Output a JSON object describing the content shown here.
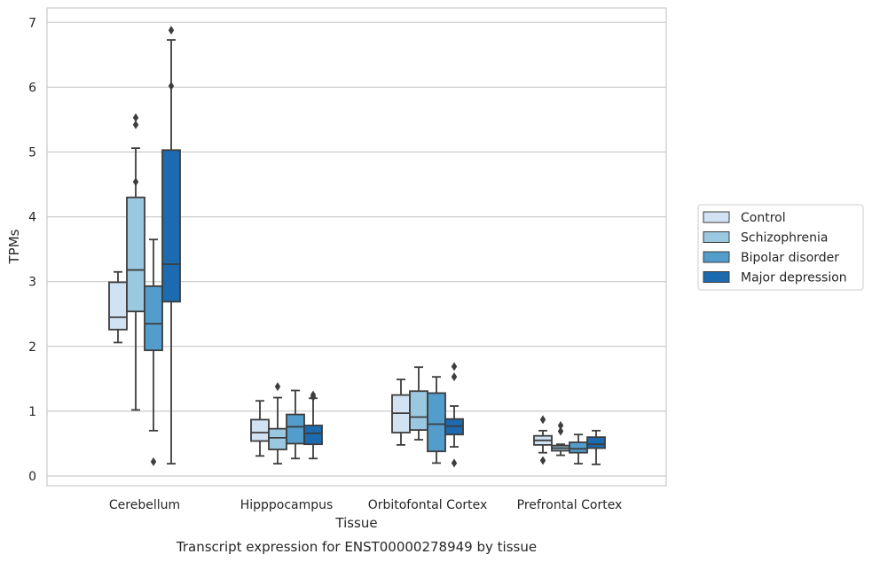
{
  "chart_data": {
    "type": "box",
    "title": "",
    "caption": "Transcript expression for ENST00000278949 by tissue",
    "xlabel": "Tissue",
    "ylabel": "TPMs",
    "ylim": [
      -0.15,
      7.25
    ],
    "yticks": [
      0,
      1,
      2,
      3,
      4,
      5,
      6,
      7
    ],
    "grid": "horizontal",
    "legend_position": "right",
    "categories": [
      "Cerebellum",
      "Hipppocampus",
      "Orbitofontal Cortex",
      "Prefrontal Cortex"
    ],
    "series": [
      {
        "name": "Control",
        "color": "#d1e2f2",
        "boxes": [
          {
            "whislo": 2.06,
            "q1": 2.26,
            "med": 2.45,
            "q3": 2.99,
            "whishi": 3.15,
            "fliers": []
          },
          {
            "whislo": 0.31,
            "q1": 0.54,
            "med": 0.67,
            "q3": 0.87,
            "whishi": 1.16,
            "fliers": []
          },
          {
            "whislo": 0.48,
            "q1": 0.67,
            "med": 0.97,
            "q3": 1.25,
            "whishi": 1.49,
            "fliers": []
          },
          {
            "whislo": 0.36,
            "q1": 0.48,
            "med": 0.55,
            "q3": 0.62,
            "whishi": 0.7,
            "fliers": [
              0.87,
              0.24
            ]
          }
        ]
      },
      {
        "name": "Schizophrenia",
        "color": "#9ac8e0",
        "boxes": [
          {
            "whislo": 1.02,
            "q1": 2.54,
            "med": 3.18,
            "q3": 4.3,
            "whishi": 5.06,
            "fliers": [
              5.53,
              5.42,
              4.54
            ]
          },
          {
            "whislo": 0.19,
            "q1": 0.41,
            "med": 0.59,
            "q3": 0.73,
            "whishi": 1.21,
            "fliers": [
              1.38
            ]
          },
          {
            "whislo": 0.56,
            "q1": 0.71,
            "med": 0.91,
            "q3": 1.31,
            "whishi": 1.68,
            "fliers": []
          },
          {
            "whislo": 0.32,
            "q1": 0.39,
            "med": 0.43,
            "q3": 0.47,
            "whishi": 0.49,
            "fliers": [
              0.78,
              0.69
            ]
          }
        ]
      },
      {
        "name": "Bipolar disorder",
        "color": "#529dcc",
        "boxes": [
          {
            "whislo": 0.7,
            "q1": 1.94,
            "med": 2.35,
            "q3": 2.93,
            "whishi": 3.65,
            "fliers": [
              0.22
            ]
          },
          {
            "whislo": 0.27,
            "q1": 0.5,
            "med": 0.76,
            "q3": 0.95,
            "whishi": 1.32,
            "fliers": []
          },
          {
            "whislo": 0.2,
            "q1": 0.38,
            "med": 0.8,
            "q3": 1.28,
            "whishi": 1.53,
            "fliers": []
          },
          {
            "whislo": 0.19,
            "q1": 0.36,
            "med": 0.42,
            "q3": 0.52,
            "whishi": 0.64,
            "fliers": []
          }
        ]
      },
      {
        "name": "Major depression",
        "color": "#1c6aaf",
        "boxes": [
          {
            "whislo": 0.19,
            "q1": 2.69,
            "med": 3.27,
            "q3": 5.03,
            "whishi": 6.73,
            "fliers": [
              6.88,
              6.02
            ]
          },
          {
            "whislo": 0.27,
            "q1": 0.49,
            "med": 0.66,
            "q3": 0.78,
            "whishi": 1.2,
            "fliers": [
              1.25,
              1.22
            ]
          },
          {
            "whislo": 0.45,
            "q1": 0.64,
            "med": 0.77,
            "q3": 0.88,
            "whishi": 1.08,
            "fliers": [
              1.69,
              1.53,
              0.2
            ]
          },
          {
            "whislo": 0.18,
            "q1": 0.43,
            "med": 0.49,
            "q3": 0.6,
            "whishi": 0.7,
            "fliers": []
          }
        ]
      }
    ]
  }
}
